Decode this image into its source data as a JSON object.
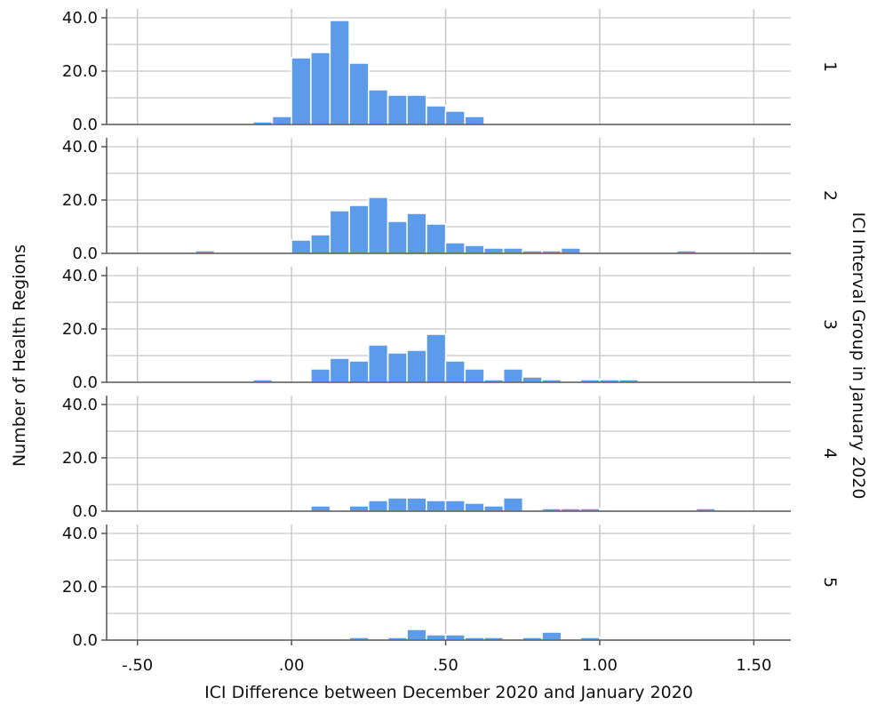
{
  "chart_data": {
    "type": "bar",
    "subtype": "faceted-histogram",
    "title": "",
    "xlabel": "ICI Difference between December 2020 and January 2020",
    "ylabel": "Number of Health Regions",
    "facet_title": "ICI Interval Group in January 2020",
    "xlim": [
      -0.6,
      1.62
    ],
    "ylim": [
      0,
      42
    ],
    "x_ticks": [
      -0.5,
      0.0,
      0.5,
      1.0,
      1.5
    ],
    "x_tick_labels": [
      "-.50",
      ".00",
      ".50",
      "1.00",
      "1.50"
    ],
    "y_ticks": [
      0,
      20,
      40
    ],
    "y_tick_labels": [
      "0.0",
      "20.0",
      "40.0"
    ],
    "grid": true,
    "bin_width": 0.0625,
    "bar_color": "#5b9bea",
    "facets": [
      {
        "label": "1",
        "bins": [
          {
            "x": -0.094,
            "value": 1
          },
          {
            "x": -0.031,
            "value": 3
          },
          {
            "x": 0.031,
            "value": 25
          },
          {
            "x": 0.094,
            "value": 27
          },
          {
            "x": 0.156,
            "value": 39
          },
          {
            "x": 0.219,
            "value": 23
          },
          {
            "x": 0.281,
            "value": 13
          },
          {
            "x": 0.344,
            "value": 11
          },
          {
            "x": 0.406,
            "value": 11
          },
          {
            "x": 0.469,
            "value": 7
          },
          {
            "x": 0.531,
            "value": 5
          },
          {
            "x": 0.594,
            "value": 3
          }
        ]
      },
      {
        "label": "2",
        "bins": [
          {
            "x": -0.281,
            "value": 1
          },
          {
            "x": 0.031,
            "value": 5
          },
          {
            "x": 0.094,
            "value": 7
          },
          {
            "x": 0.156,
            "value": 16
          },
          {
            "x": 0.219,
            "value": 18
          },
          {
            "x": 0.281,
            "value": 21
          },
          {
            "x": 0.344,
            "value": 12
          },
          {
            "x": 0.406,
            "value": 15
          },
          {
            "x": 0.469,
            "value": 11
          },
          {
            "x": 0.531,
            "value": 4
          },
          {
            "x": 0.594,
            "value": 3
          },
          {
            "x": 0.656,
            "value": 2
          },
          {
            "x": 0.719,
            "value": 2
          },
          {
            "x": 0.781,
            "value": 1
          },
          {
            "x": 0.844,
            "value": 1
          },
          {
            "x": 0.906,
            "value": 2
          },
          {
            "x": 1.281,
            "value": 1
          }
        ]
      },
      {
        "label": "3",
        "bins": [
          {
            "x": -0.094,
            "value": 1
          },
          {
            "x": 0.094,
            "value": 5
          },
          {
            "x": 0.156,
            "value": 9
          },
          {
            "x": 0.219,
            "value": 8
          },
          {
            "x": 0.281,
            "value": 14
          },
          {
            "x": 0.344,
            "value": 11
          },
          {
            "x": 0.406,
            "value": 12
          },
          {
            "x": 0.469,
            "value": 18
          },
          {
            "x": 0.531,
            "value": 8
          },
          {
            "x": 0.594,
            "value": 5
          },
          {
            "x": 0.656,
            "value": 1
          },
          {
            "x": 0.719,
            "value": 5
          },
          {
            "x": 0.781,
            "value": 2
          },
          {
            "x": 0.844,
            "value": 1
          },
          {
            "x": 0.969,
            "value": 1
          },
          {
            "x": 1.031,
            "value": 1
          },
          {
            "x": 1.094,
            "value": 1
          }
        ]
      },
      {
        "label": "4",
        "bins": [
          {
            "x": 0.094,
            "value": 2
          },
          {
            "x": 0.219,
            "value": 2
          },
          {
            "x": 0.281,
            "value": 4
          },
          {
            "x": 0.344,
            "value": 5
          },
          {
            "x": 0.406,
            "value": 5
          },
          {
            "x": 0.469,
            "value": 4
          },
          {
            "x": 0.531,
            "value": 4
          },
          {
            "x": 0.594,
            "value": 3
          },
          {
            "x": 0.656,
            "value": 2
          },
          {
            "x": 0.719,
            "value": 5
          },
          {
            "x": 0.844,
            "value": 1
          },
          {
            "x": 0.906,
            "value": 1
          },
          {
            "x": 0.969,
            "value": 1
          },
          {
            "x": 1.344,
            "value": 1
          }
        ]
      },
      {
        "label": "5",
        "bins": [
          {
            "x": 0.219,
            "value": 1
          },
          {
            "x": 0.344,
            "value": 1
          },
          {
            "x": 0.406,
            "value": 4
          },
          {
            "x": 0.469,
            "value": 2
          },
          {
            "x": 0.531,
            "value": 2
          },
          {
            "x": 0.594,
            "value": 1
          },
          {
            "x": 0.656,
            "value": 1
          },
          {
            "x": 0.781,
            "value": 1
          },
          {
            "x": 0.844,
            "value": 3
          },
          {
            "x": 0.969,
            "value": 1
          }
        ]
      }
    ]
  }
}
